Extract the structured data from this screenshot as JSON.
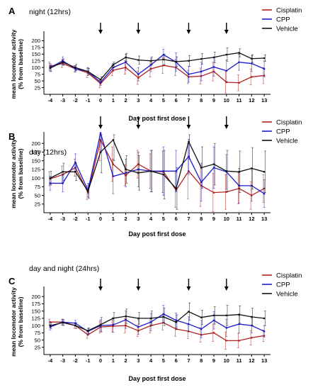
{
  "figure": {
    "shared": {
      "xlabel": "Day post first dose",
      "ylabel_line1": "mean locomotor activity",
      "ylabel_line2": "(% from baseline)",
      "x_ticks": [
        -4,
        -3,
        -2,
        -1,
        0,
        1,
        2,
        3,
        4,
        5,
        6,
        7,
        8,
        9,
        10,
        11,
        12,
        13
      ],
      "y_ticks": [
        25,
        50,
        75,
        100,
        125,
        150,
        175,
        200
      ],
      "dose_days": [
        0,
        3,
        7,
        10
      ],
      "colors": {
        "Cisplatin": "#b22222",
        "CPP": "#1c1ccc",
        "Vehicle": "#111111"
      }
    }
  },
  "chart_data": [
    {
      "panel_letter": "A",
      "type": "line",
      "title": "night (12hrs)",
      "xlabel": "Day post first dose",
      "ylabel": "mean locomotor activity (% from baseline)",
      "ylim": [
        0,
        225
      ],
      "legend_position": "top-right",
      "x": [
        -4,
        -3,
        -2,
        -1,
        0,
        1,
        2,
        3,
        4,
        5,
        6,
        7,
        8,
        9,
        10,
        11,
        12,
        13
      ],
      "series": [
        {
          "name": "Cisplatin",
          "color": "#b22222",
          "values": [
            105,
            115,
            95,
            80,
            40,
            90,
            100,
            62,
            95,
            108,
            100,
            65,
            68,
            85,
            45,
            43,
            65,
            70
          ],
          "errors": [
            15,
            15,
            12,
            18,
            15,
            20,
            25,
            25,
            30,
            30,
            30,
            25,
            30,
            35,
            40,
            30,
            30,
            30
          ]
        },
        {
          "name": "CPP",
          "color": "#1c1ccc",
          "values": [
            100,
            125,
            95,
            85,
            45,
            100,
            120,
            75,
            110,
            148,
            120,
            75,
            85,
            102,
            88,
            120,
            115,
            95
          ],
          "errors": [
            15,
            15,
            12,
            15,
            12,
            15,
            30,
            25,
            25,
            20,
            35,
            30,
            35,
            35,
            40,
            30,
            30,
            30
          ]
        },
        {
          "name": "Vehicle",
          "color": "#111111",
          "values": [
            98,
            120,
            100,
            85,
            55,
            110,
            138,
            128,
            125,
            130,
            122,
            125,
            132,
            138,
            148,
            155,
            133,
            135
          ],
          "errors": [
            12,
            12,
            12,
            12,
            10,
            10,
            15,
            15,
            15,
            20,
            18,
            20,
            20,
            20,
            25,
            15,
            15,
            12
          ]
        }
      ]
    },
    {
      "panel_letter": "B",
      "type": "line",
      "title": "day (12hrs)",
      "xlabel": "Day post first dose",
      "ylabel": "mean locomotor activity (% from baseline)",
      "ylim": [
        0,
        225
      ],
      "legend_position": "top-right",
      "x": [
        -4,
        -3,
        -2,
        -1,
        0,
        1,
        2,
        3,
        4,
        5,
        6,
        7,
        8,
        9,
        10,
        11,
        12,
        13
      ],
      "series": [
        {
          "name": "Cisplatin",
          "color": "#b22222",
          "values": [
            98,
            110,
            130,
            58,
            210,
            140,
            108,
            140,
            120,
            118,
            65,
            120,
            78,
            58,
            60,
            70,
            50,
            70
          ],
          "errors": [
            20,
            25,
            25,
            20,
            60,
            50,
            30,
            40,
            50,
            60,
            50,
            80,
            60,
            55,
            50,
            45,
            40,
            40
          ]
        },
        {
          "name": "CPP",
          "color": "#1c1ccc",
          "values": [
            85,
            85,
            145,
            65,
            230,
            105,
            115,
            125,
            120,
            120,
            120,
            162,
            88,
            130,
            118,
            78,
            78,
            55
          ],
          "errors": [
            20,
            25,
            25,
            20,
            50,
            50,
            40,
            50,
            60,
            70,
            60,
            50,
            55,
            60,
            50,
            50,
            45,
            40
          ]
        },
        {
          "name": "Vehicle",
          "color": "#111111",
          "values": [
            100,
            118,
            118,
            62,
            175,
            210,
            125,
            115,
            120,
            110,
            70,
            205,
            130,
            140,
            120,
            118,
            128,
            118
          ],
          "errors": [
            20,
            25,
            25,
            20,
            60,
            60,
            40,
            50,
            60,
            70,
            60,
            50,
            60,
            60,
            60,
            60,
            60,
            60
          ]
        }
      ]
    },
    {
      "panel_letter": "C",
      "type": "line",
      "title": "day and night (24hrs)",
      "xlabel": "Day post first dose",
      "ylabel": "mean locomotor activity (% from baseline)",
      "ylim": [
        0,
        225
      ],
      "legend_position": "top-right",
      "x": [
        -4,
        -3,
        -2,
        -1,
        0,
        1,
        2,
        3,
        4,
        5,
        6,
        7,
        8,
        9,
        10,
        11,
        12,
        13
      ],
      "series": [
        {
          "name": "Cisplatin",
          "color": "#b22222",
          "values": [
            112,
            112,
            100,
            68,
            95,
            98,
            100,
            82,
            100,
            110,
            88,
            80,
            68,
            75,
            48,
            48,
            58,
            65
          ],
          "errors": [
            10,
            10,
            10,
            12,
            20,
            20,
            25,
            20,
            25,
            25,
            25,
            25,
            25,
            30,
            30,
            25,
            25,
            20
          ]
        },
        {
          "name": "CPP",
          "color": "#1c1ccc",
          "values": [
            95,
            112,
            108,
            80,
            100,
            102,
            120,
            95,
            112,
            140,
            118,
            105,
            88,
            118,
            92,
            105,
            100,
            80
          ],
          "errors": [
            10,
            10,
            10,
            10,
            20,
            25,
            30,
            25,
            30,
            30,
            25,
            25,
            30,
            30,
            30,
            30,
            25,
            20
          ]
        },
        {
          "name": "Vehicle",
          "color": "#111111",
          "values": [
            100,
            110,
            100,
            82,
            103,
            125,
            132,
            125,
            125,
            130,
            112,
            148,
            128,
            135,
            135,
            138,
            130,
            125
          ],
          "errors": [
            10,
            10,
            10,
            10,
            25,
            20,
            25,
            20,
            25,
            30,
            25,
            30,
            25,
            30,
            35,
            30,
            30,
            25
          ]
        }
      ]
    }
  ]
}
